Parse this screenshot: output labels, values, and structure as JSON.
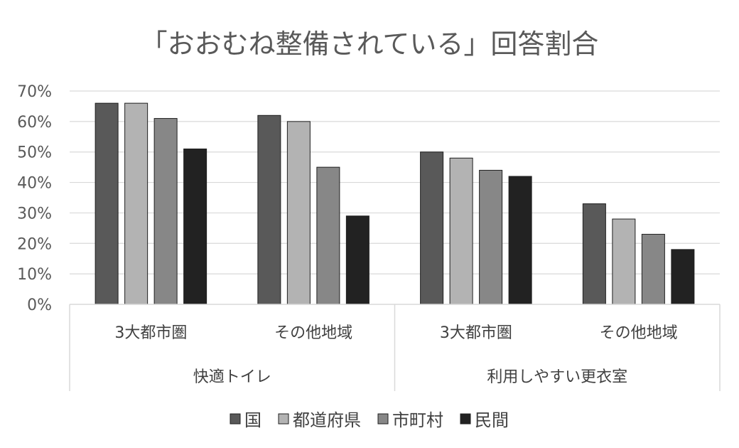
{
  "chart_data": {
    "type": "bar",
    "title": "「おおむね整備されている」回答割合",
    "groups": [
      {
        "label": "快適トイレ",
        "categories": [
          "3大都市圏",
          "その他地域"
        ]
      },
      {
        "label": "利用しやすい更衣室",
        "categories": [
          "3大都市圏",
          "その他地域"
        ]
      }
    ],
    "categories": [
      "3大都市圏",
      "その他地域",
      "3大都市圏",
      "その他地域"
    ],
    "series": [
      {
        "name": "国",
        "color": "#595959",
        "values": [
          66,
          62,
          50,
          33
        ]
      },
      {
        "name": "都道府県",
        "color": "#b3b3b3",
        "values": [
          66,
          60,
          48,
          28
        ]
      },
      {
        "name": "市町村",
        "color": "#878787",
        "values": [
          61,
          45,
          44,
          23
        ]
      },
      {
        "name": "民間",
        "color": "#222222",
        "values": [
          51,
          29,
          42,
          18
        ]
      }
    ],
    "ylim": [
      0,
      70
    ],
    "yticks": [
      "0%",
      "10%",
      "20%",
      "30%",
      "40%",
      "50%",
      "60%",
      "70%"
    ],
    "value_unit": "%",
    "grid": true,
    "legend_position": "bottom"
  }
}
